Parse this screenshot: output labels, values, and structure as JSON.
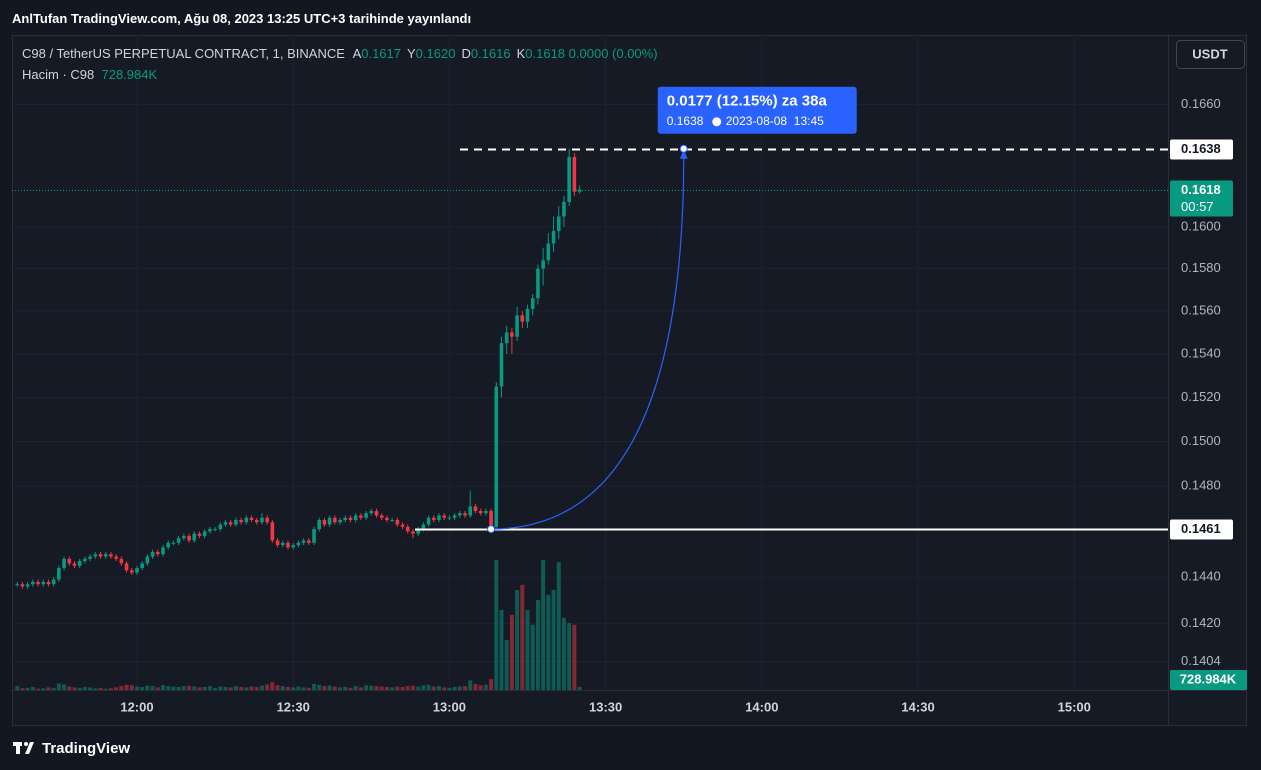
{
  "header": {
    "title": "AnlTufan TradingView.com, Ağu 08, 2023 13:25 UTC+3 tarihinde yayınlandı"
  },
  "footer": {
    "brand": "TradingView"
  },
  "currency_button": "USDT",
  "chart_data": {
    "type": "candlestick",
    "symbol": "C98 / TetherUS PERPETUAL CONTRACT, 1, BINANCE",
    "ohlc_legend": [
      {
        "key": "A",
        "value": "0.1617"
      },
      {
        "key": "Y",
        "value": "0.1620"
      },
      {
        "key": "D",
        "value": "0.1616"
      },
      {
        "key": "K",
        "value": "0.1618"
      }
    ],
    "change": "0.0000 (0.00%)",
    "volume_name": "Hacim · C98",
    "volume_last_label": "728.984K",
    "up_color": "#089981",
    "down_color": "#f23645",
    "x": [
      697,
      698,
      699,
      700,
      701,
      702,
      703,
      704,
      705,
      706,
      707,
      708,
      709,
      710,
      711,
      712,
      713,
      714,
      715,
      716,
      717,
      718,
      719,
      720,
      721,
      722,
      723,
      724,
      725,
      726,
      727,
      728,
      729,
      730,
      731,
      732,
      733,
      734,
      735,
      736,
      737,
      738,
      739,
      740,
      741,
      742,
      743,
      744,
      745,
      746,
      747,
      748,
      749,
      750,
      751,
      752,
      753,
      754,
      755,
      756,
      757,
      758,
      759,
      760,
      761,
      762,
      763,
      764,
      765,
      766,
      767,
      768,
      769,
      770,
      771,
      772,
      773,
      774,
      775,
      776,
      777,
      778,
      779,
      780,
      781,
      782,
      783,
      784,
      785,
      786,
      787,
      788,
      789,
      790,
      791,
      792,
      793,
      794,
      795,
      796,
      797,
      798,
      799,
      800,
      801,
      802,
      803,
      804,
      805
    ],
    "open": [
      0.1437,
      0.1437,
      0.1436,
      0.1437,
      0.1438,
      0.1437,
      0.1438,
      0.1437,
      0.1439,
      0.1444,
      0.1448,
      0.1446,
      0.1445,
      0.1447,
      0.1448,
      0.1449,
      0.145,
      0.1449,
      0.145,
      0.1449,
      0.1448,
      0.1446,
      0.1443,
      0.1442,
      0.1444,
      0.1446,
      0.1449,
      0.1451,
      0.145,
      0.1453,
      0.1455,
      0.1455,
      0.1457,
      0.1458,
      0.1456,
      0.1459,
      0.1458,
      0.146,
      0.1461,
      0.1461,
      0.1463,
      0.1464,
      0.1463,
      0.1465,
      0.1464,
      0.1466,
      0.1465,
      0.1464,
      0.1466,
      0.1464,
      0.1456,
      0.1454,
      0.1455,
      0.1453,
      0.1454,
      0.1455,
      0.1456,
      0.1455,
      0.1461,
      0.1465,
      0.1463,
      0.1466,
      0.1464,
      0.1465,
      0.1466,
      0.1465,
      0.1467,
      0.1466,
      0.1468,
      0.1469,
      0.1467,
      0.1466,
      0.1465,
      0.1465,
      0.1463,
      0.1462,
      0.146,
      0.1459,
      0.1461,
      0.1463,
      0.1466,
      0.1465,
      0.1467,
      0.1466,
      0.1466,
      0.1467,
      0.1468,
      0.1467,
      0.1471,
      0.1469,
      0.1468,
      0.1469,
      0.1462,
      0.1525,
      0.1545,
      0.155,
      0.1548,
      0.1558,
      0.1555,
      0.1561,
      0.1566,
      0.158,
      0.1584,
      0.1592,
      0.1598,
      0.1605,
      0.1612,
      0.1634,
      0.1617
    ],
    "high": [
      0.1438,
      0.1438,
      0.1438,
      0.1439,
      0.1439,
      0.1439,
      0.1439,
      0.144,
      0.1445,
      0.1449,
      0.1449,
      0.1447,
      0.1448,
      0.1449,
      0.145,
      0.1451,
      0.1451,
      0.1451,
      0.1451,
      0.145,
      0.1449,
      0.1447,
      0.1444,
      0.1445,
      0.1447,
      0.145,
      0.1452,
      0.1452,
      0.1454,
      0.1456,
      0.1456,
      0.1458,
      0.1459,
      0.1459,
      0.146,
      0.146,
      0.1461,
      0.1462,
      0.1462,
      0.1464,
      0.1465,
      0.1465,
      0.1466,
      0.1466,
      0.1467,
      0.1467,
      0.1466,
      0.1468,
      0.1467,
      0.1465,
      0.1457,
      0.1456,
      0.1456,
      0.1455,
      0.1456,
      0.1457,
      0.1457,
      0.1462,
      0.1466,
      0.1466,
      0.1467,
      0.1467,
      0.1466,
      0.1467,
      0.1467,
      0.1468,
      0.1468,
      0.1469,
      0.147,
      0.147,
      0.1468,
      0.1467,
      0.1466,
      0.1466,
      0.1464,
      0.1463,
      0.1461,
      0.1462,
      0.1464,
      0.1467,
      0.1467,
      0.1468,
      0.1468,
      0.1467,
      0.1468,
      0.1469,
      0.1469,
      0.1478,
      0.1472,
      0.147,
      0.147,
      0.147,
      0.1527,
      0.1548,
      0.1553,
      0.1552,
      0.1562,
      0.156,
      0.1563,
      0.1568,
      0.1582,
      0.159,
      0.1597,
      0.1605,
      0.161,
      0.1615,
      0.1638,
      0.1636,
      0.162
    ],
    "low": [
      0.1436,
      0.1435,
      0.1435,
      0.1436,
      0.1436,
      0.1436,
      0.1436,
      0.1436,
      0.1438,
      0.1443,
      0.1445,
      0.1444,
      0.1444,
      0.1446,
      0.1447,
      0.1448,
      0.1448,
      0.1448,
      0.1448,
      0.1447,
      0.1445,
      0.1442,
      0.1441,
      0.1441,
      0.1443,
      0.1445,
      0.1448,
      0.1449,
      0.1449,
      0.1452,
      0.1454,
      0.1454,
      0.1456,
      0.1455,
      0.1455,
      0.1457,
      0.1457,
      0.1459,
      0.146,
      0.146,
      0.1462,
      0.1462,
      0.1462,
      0.1463,
      0.1463,
      0.1464,
      0.1463,
      0.1463,
      0.1463,
      0.1455,
      0.1453,
      0.1453,
      0.1452,
      0.1452,
      0.1453,
      0.1454,
      0.1454,
      0.1454,
      0.146,
      0.1462,
      0.1462,
      0.1463,
      0.1463,
      0.1464,
      0.1464,
      0.1464,
      0.1465,
      0.1465,
      0.1467,
      0.1466,
      0.1465,
      0.1464,
      0.1464,
      0.1462,
      0.1461,
      0.1459,
      0.1457,
      0.1458,
      0.146,
      0.1462,
      0.1464,
      0.1464,
      0.1465,
      0.1465,
      0.1465,
      0.1466,
      0.1466,
      0.1466,
      0.1468,
      0.1467,
      0.1467,
      0.1461,
      0.1461,
      0.152,
      0.154,
      0.154,
      0.1546,
      0.1552,
      0.1552,
      0.1558,
      0.1563,
      0.1572,
      0.1582,
      0.1588,
      0.1594,
      0.16,
      0.161,
      0.1615,
      0.1616
    ],
    "close": [
      0.1437,
      0.1436,
      0.1437,
      0.1438,
      0.1437,
      0.1438,
      0.1437,
      0.1439,
      0.1444,
      0.1448,
      0.1446,
      0.1445,
      0.1447,
      0.1448,
      0.1449,
      0.145,
      0.1449,
      0.145,
      0.1449,
      0.1448,
      0.1446,
      0.1443,
      0.1442,
      0.1444,
      0.1446,
      0.1449,
      0.1451,
      0.145,
      0.1453,
      0.1455,
      0.1455,
      0.1457,
      0.1458,
      0.1456,
      0.1459,
      0.1458,
      0.146,
      0.1461,
      0.1461,
      0.1463,
      0.1464,
      0.1463,
      0.1465,
      0.1464,
      0.1466,
      0.1465,
      0.1464,
      0.1466,
      0.1464,
      0.1456,
      0.1454,
      0.1455,
      0.1453,
      0.1454,
      0.1455,
      0.1456,
      0.1455,
      0.1461,
      0.1465,
      0.1463,
      0.1466,
      0.1464,
      0.1465,
      0.1466,
      0.1465,
      0.1467,
      0.1466,
      0.1468,
      0.1469,
      0.1467,
      0.1466,
      0.1465,
      0.1465,
      0.1463,
      0.1462,
      0.146,
      0.1459,
      0.1461,
      0.1463,
      0.1466,
      0.1465,
      0.1467,
      0.1466,
      0.1466,
      0.1467,
      0.1468,
      0.1467,
      0.1471,
      0.1469,
      0.1468,
      0.1469,
      0.1462,
      0.1525,
      0.1545,
      0.155,
      0.1548,
      0.1558,
      0.1555,
      0.1561,
      0.1566,
      0.158,
      0.1584,
      0.1592,
      0.1598,
      0.1605,
      0.1612,
      0.1634,
      0.1617,
      0.1618
    ],
    "volume": [
      900000,
      400000,
      500000,
      700000,
      300000,
      400000,
      600000,
      500000,
      1500000,
      1300000,
      800000,
      600000,
      500000,
      700000,
      600000,
      400000,
      500000,
      300000,
      400000,
      600000,
      900000,
      1200000,
      1100000,
      800000,
      700000,
      1000000,
      900000,
      600000,
      1100000,
      900000,
      800000,
      700000,
      900000,
      1000000,
      800000,
      600000,
      700000,
      900000,
      500000,
      800000,
      700000,
      600000,
      900000,
      700000,
      600000,
      800000,
      700000,
      1000000,
      1300000,
      1800000,
      1100000,
      900000,
      700000,
      600000,
      800000,
      600000,
      500000,
      1400000,
      1200000,
      900000,
      1000000,
      800000,
      600000,
      700000,
      500000,
      900000,
      600000,
      1100000,
      1000000,
      900000,
      800000,
      700000,
      600000,
      800000,
      700000,
      900000,
      1000000,
      800000,
      1100000,
      1200000,
      800000,
      900000,
      600000,
      500000,
      700000,
      800000,
      900000,
      2200000,
      1400000,
      1100000,
      1200000,
      2500000,
      29900000,
      18400000,
      11500000,
      17300000,
      23000000,
      24200000,
      18400000,
      15000000,
      20700000,
      29900000,
      21900000,
      23000000,
      29400000,
      16600000,
      15400000,
      15000000,
      728984
    ],
    "xlim": [
      696,
      918
    ],
    "xticks": [
      {
        "value": 720,
        "label": "12:00"
      },
      {
        "value": 750,
        "label": "12:30"
      },
      {
        "value": 780,
        "label": "13:00"
      },
      {
        "value": 810,
        "label": "13:30"
      },
      {
        "value": 840,
        "label": "14:00"
      },
      {
        "value": 870,
        "label": "14:30"
      },
      {
        "value": 900,
        "label": "15:00"
      }
    ],
    "ylim": [
      0.1392,
      0.1695
    ],
    "log_y": true,
    "grid": true,
    "yticks": [
      {
        "value": 0.166,
        "label": "0.1660"
      },
      {
        "value": 0.16,
        "label": "0.1600"
      },
      {
        "value": 0.158,
        "label": "0.1580"
      },
      {
        "value": 0.156,
        "label": "0.1560"
      },
      {
        "value": 0.154,
        "label": "0.1540"
      },
      {
        "value": 0.152,
        "label": "0.1520"
      },
      {
        "value": 0.15,
        "label": "0.1500"
      },
      {
        "value": 0.148,
        "label": "0.1480"
      },
      {
        "value": 0.144,
        "label": "0.1440"
      },
      {
        "value": 0.142,
        "label": "0.1420"
      },
      {
        "value": 0.1404,
        "label": "0.1404"
      }
    ],
    "price_lines": [
      {
        "value": 0.1638,
        "label": "0.1638",
        "style": "dashed",
        "color": "#ffffff"
      },
      {
        "value": 0.1618,
        "label": "0.1618",
        "countdown": "00:57",
        "style": "dotted",
        "color": "#089981"
      },
      {
        "value": 0.1461,
        "label": "0.1461",
        "style": "solid",
        "color": "#ffffff"
      }
    ],
    "measure": {
      "x0": 788,
      "y0": 0.1461,
      "x1": 825,
      "y1": 0.1638,
      "text": "0.0177 (12.15%) za 38a",
      "price": "0.1638",
      "time": "2023-08-08  13:45",
      "color": "#2962ff"
    }
  }
}
